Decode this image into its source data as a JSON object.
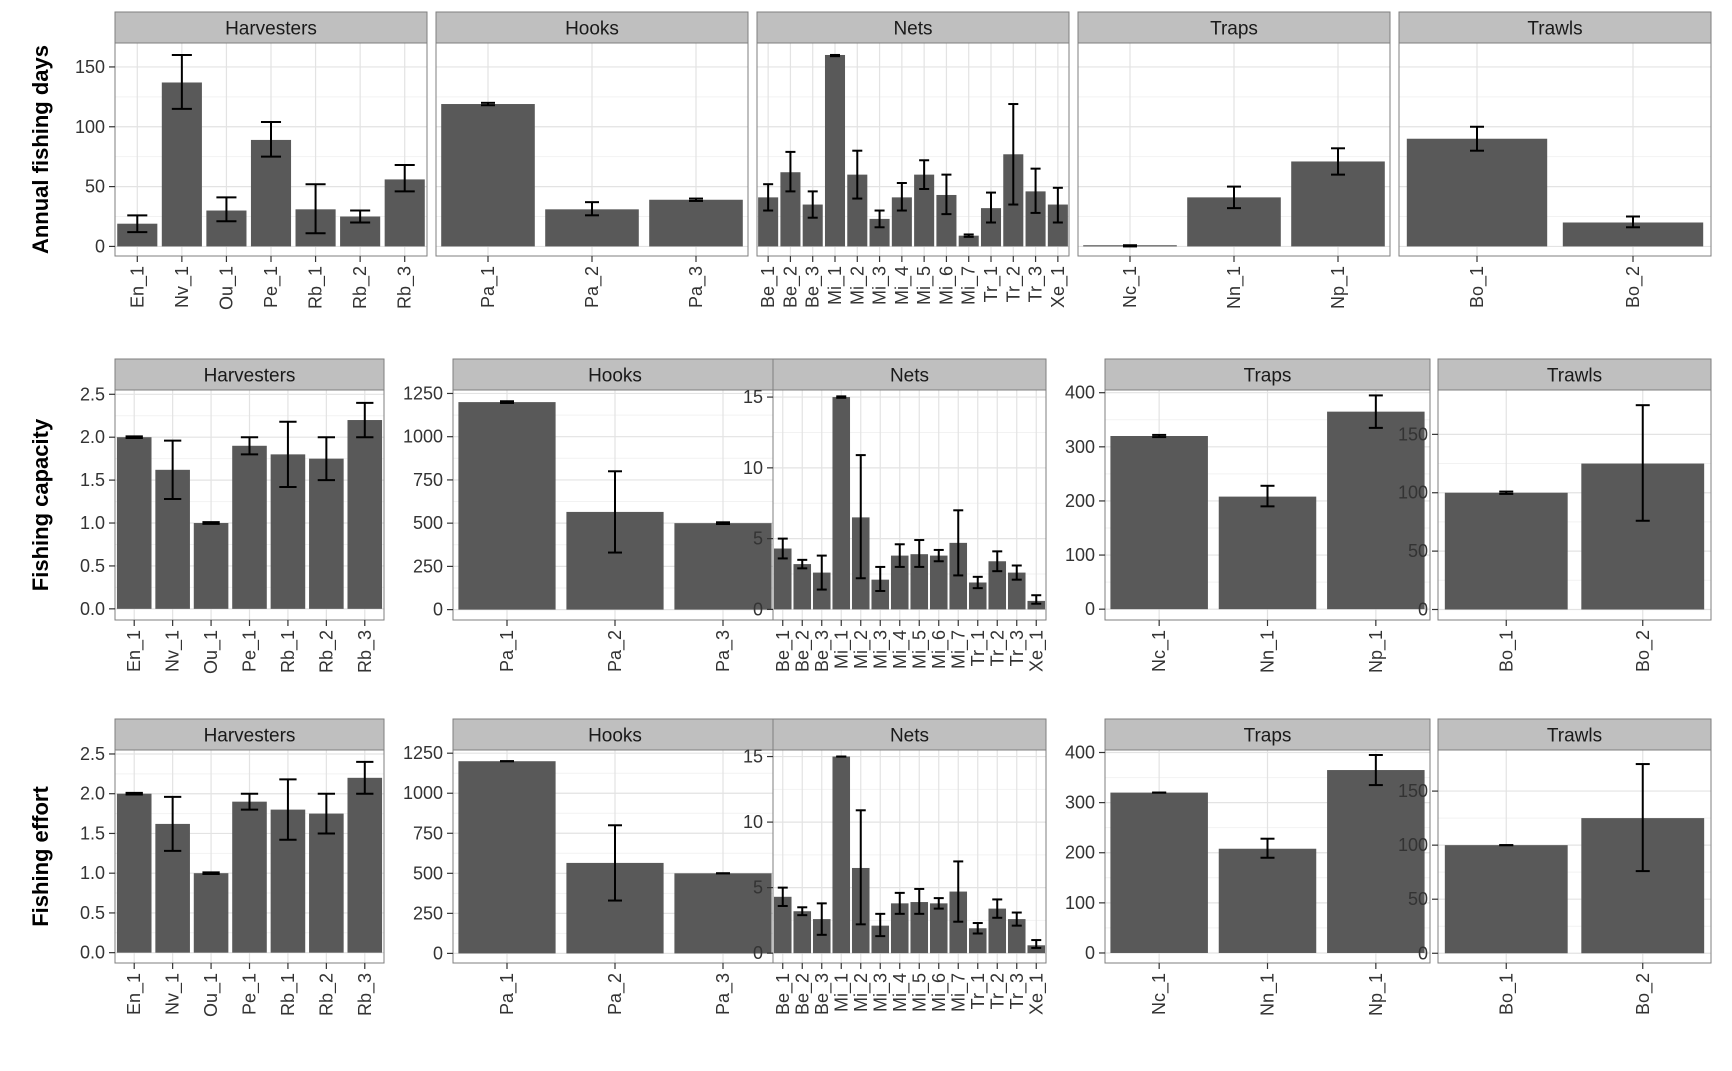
{
  "colors": {
    "bar": "#595959",
    "strip_fill": "#bfbfbf",
    "grid_major": "#e3e3e3",
    "grid_minor": "#f2f2f2",
    "panel_border": "#7f7f7f",
    "error_bar": "#000000"
  },
  "chart_data": [
    {
      "type": "bar",
      "ylabel": "Annual fishing days",
      "grid": true,
      "shared_y_axis": true,
      "ylim": [
        -8,
        170
      ],
      "yticks": [
        0,
        50,
        100,
        150
      ],
      "ytick_labels": [
        "0",
        "50",
        "100",
        "150"
      ],
      "facets": [
        {
          "name": "Harvesters",
          "categories": [
            "En_1",
            "Nv_1",
            "Ou_1",
            "Pe_1",
            "Rb_1",
            "Rb_2",
            "Rb_3"
          ],
          "values": [
            19,
            137,
            30,
            89,
            31,
            25,
            56
          ],
          "error_low": [
            12,
            115,
            21,
            75,
            11,
            20,
            46
          ],
          "error_high": [
            26,
            160,
            41,
            104,
            52,
            30,
            68
          ]
        },
        {
          "name": "Hooks",
          "categories": [
            "Pa_1",
            "Pa_2",
            "Pa_3"
          ],
          "values": [
            119,
            31,
            39
          ],
          "error_low": [
            118,
            26,
            38
          ],
          "error_high": [
            120,
            37,
            40
          ]
        },
        {
          "name": "Nets",
          "categories": [
            "Be_1",
            "Be_2",
            "Be_3",
            "Mi_1",
            "Mi_2",
            "Mi_3",
            "Mi_4",
            "Mi_5",
            "Mi_6",
            "Mi_7",
            "Tr_1",
            "Tr_2",
            "Tr_3",
            "Xe_1"
          ],
          "values": [
            41,
            62,
            35,
            160,
            60,
            23,
            41,
            60,
            43,
            9,
            32,
            77,
            46,
            35
          ],
          "error_low": [
            30,
            46,
            24,
            159,
            40,
            16,
            30,
            48,
            27,
            8,
            20,
            35,
            28,
            20
          ],
          "error_high": [
            52,
            79,
            46,
            160,
            80,
            30,
            53,
            72,
            60,
            10,
            45,
            119,
            65,
            49
          ]
        },
        {
          "name": "Traps",
          "categories": [
            "Nc_1",
            "Nn_1",
            "Np_1"
          ],
          "values": [
            1,
            41,
            71
          ],
          "error_low": [
            0,
            32,
            60
          ],
          "error_high": [
            1,
            50,
            82
          ]
        },
        {
          "name": "Trawls",
          "categories": [
            "Bo_1",
            "Bo_2"
          ],
          "values": [
            90,
            20
          ],
          "error_low": [
            80,
            16
          ],
          "error_high": [
            100,
            25
          ]
        }
      ]
    },
    {
      "type": "bar",
      "ylabel": "Fishing capacity",
      "grid": true,
      "shared_y_axis": false,
      "facets": [
        {
          "name": "Harvesters",
          "ylim": [
            -0.13,
            2.55
          ],
          "yticks": [
            0,
            0.5,
            1,
            1.5,
            2,
            2.5
          ],
          "ytick_labels": [
            "0.0",
            "0.5",
            "1.0",
            "1.5",
            "2.0",
            "2.5"
          ],
          "categories": [
            "En_1",
            "Nv_1",
            "Ou_1",
            "Pe_1",
            "Rb_1",
            "Rb_2",
            "Rb_3"
          ],
          "values": [
            2.0,
            1.62,
            1.0,
            1.9,
            1.8,
            1.75,
            2.2
          ],
          "error_low": [
            1.99,
            1.28,
            0.99,
            1.8,
            1.42,
            1.5,
            2.0
          ],
          "error_high": [
            2.01,
            1.96,
            1.01,
            2.0,
            2.18,
            2.0,
            2.4
          ]
        },
        {
          "name": "Hooks",
          "ylim": [
            -60,
            1270
          ],
          "yticks": [
            0,
            250,
            500,
            750,
            1000,
            1250
          ],
          "ytick_labels": [
            "0",
            "250",
            "500",
            "750",
            "1000",
            "1250"
          ],
          "categories": [
            "Pa_1",
            "Pa_2",
            "Pa_3"
          ],
          "values": [
            1200,
            565,
            500
          ],
          "error_low": [
            1195,
            330,
            495
          ],
          "error_high": [
            1205,
            800,
            505
          ]
        },
        {
          "name": "Nets",
          "ylim": [
            -0.75,
            15.5
          ],
          "yticks": [
            0,
            5,
            10,
            15
          ],
          "ytick_labels": [
            "0",
            "5",
            "10",
            "15"
          ],
          "categories": [
            "Be_1",
            "Be_2",
            "Be_3",
            "Mi_1",
            "Mi_2",
            "Mi_3",
            "Mi_4",
            "Mi_5",
            "Mi_6",
            "Mi_7",
            "Tr_1",
            "Tr_2",
            "Tr_3",
            "Xe_1"
          ],
          "values": [
            4.3,
            3.2,
            2.6,
            15.0,
            6.5,
            2.1,
            3.8,
            3.9,
            3.8,
            4.7,
            1.9,
            3.4,
            2.6,
            0.6
          ],
          "error_low": [
            3.6,
            2.9,
            1.4,
            14.95,
            2.2,
            1.3,
            3.0,
            3.0,
            3.4,
            2.4,
            1.5,
            2.7,
            2.1,
            0.4
          ],
          "error_high": [
            5.0,
            3.5,
            3.8,
            15.05,
            10.9,
            3.0,
            4.6,
            4.9,
            4.2,
            7.0,
            2.3,
            4.1,
            3.1,
            1.0
          ]
        },
        {
          "name": "Traps",
          "ylim": [
            -20,
            405
          ],
          "yticks": [
            0,
            100,
            200,
            300,
            400
          ],
          "ytick_labels": [
            "0",
            "100",
            "200",
            "300",
            "400"
          ],
          "categories": [
            "Nc_1",
            "Nn_1",
            "Np_1"
          ],
          "values": [
            320,
            208,
            365
          ],
          "error_low": [
            318,
            190,
            335
          ],
          "error_high": [
            322,
            228,
            395
          ]
        },
        {
          "name": "Trawls",
          "ylim": [
            -9,
            188
          ],
          "yticks": [
            0,
            50,
            100,
            150
          ],
          "ytick_labels": [
            "0",
            "50",
            "100",
            "150"
          ],
          "categories": [
            "Bo_1",
            "Bo_2"
          ],
          "values": [
            100,
            125
          ],
          "error_low": [
            99,
            76
          ],
          "error_high": [
            101,
            175
          ]
        }
      ]
    },
    {
      "type": "bar",
      "ylabel": "Fishing effort",
      "grid": true,
      "shared_y_axis": false,
      "facets": [
        {
          "name": "Harvesters",
          "ylim": [
            -0.13,
            2.55
          ],
          "yticks": [
            0,
            0.5,
            1,
            1.5,
            2,
            2.5
          ],
          "ytick_labels": [
            "0.0",
            "0.5",
            "1.0",
            "1.5",
            "2.0",
            "2.5"
          ],
          "categories": [
            "En_1",
            "Nv_1",
            "Ou_1",
            "Pe_1",
            "Rb_1",
            "Rb_2",
            "Rb_3"
          ],
          "values": [
            2.0,
            1.62,
            1.0,
            1.9,
            1.8,
            1.75,
            2.2
          ],
          "error_low": [
            1.99,
            1.28,
            0.99,
            1.8,
            1.42,
            1.5,
            2.0
          ],
          "error_high": [
            2.01,
            1.96,
            1.01,
            2.0,
            2.18,
            2.0,
            2.4
          ]
        },
        {
          "name": "Hooks",
          "ylim": [
            -60,
            1270
          ],
          "yticks": [
            0,
            250,
            500,
            750,
            1000,
            1250
          ],
          "ytick_labels": [
            "0",
            "250",
            "500",
            "750",
            "1000",
            "1250"
          ],
          "categories": [
            "Pa_1",
            "Pa_2",
            "Pa_3"
          ],
          "values": [
            1200,
            565,
            500
          ],
          "error_low": [
            1200,
            330,
            500
          ],
          "error_high": [
            1200,
            800,
            500
          ]
        },
        {
          "name": "Nets",
          "ylim": [
            -0.75,
            15.5
          ],
          "yticks": [
            0,
            5,
            10,
            15
          ],
          "ytick_labels": [
            "0",
            "5",
            "10",
            "15"
          ],
          "categories": [
            "Be_1",
            "Be_2",
            "Be_3",
            "Mi_1",
            "Mi_2",
            "Mi_3",
            "Mi_4",
            "Mi_5",
            "Mi_6",
            "Mi_7",
            "Tr_1",
            "Tr_2",
            "Tr_3",
            "Xe_1"
          ],
          "values": [
            4.3,
            3.2,
            2.6,
            15.0,
            6.5,
            2.1,
            3.8,
            3.9,
            3.8,
            4.7,
            1.9,
            3.4,
            2.6,
            0.6
          ],
          "error_low": [
            3.6,
            2.9,
            1.4,
            15.0,
            2.2,
            1.3,
            3.0,
            3.0,
            3.4,
            2.4,
            1.5,
            2.7,
            2.1,
            0.4
          ],
          "error_high": [
            5.0,
            3.5,
            3.8,
            15.0,
            10.9,
            3.0,
            4.6,
            4.9,
            4.2,
            7.0,
            2.3,
            4.1,
            3.1,
            1.0
          ]
        },
        {
          "name": "Traps",
          "ylim": [
            -20,
            405
          ],
          "yticks": [
            0,
            100,
            200,
            300,
            400
          ],
          "ytick_labels": [
            "0",
            "100",
            "200",
            "300",
            "400"
          ],
          "categories": [
            "Nc_1",
            "Nn_1",
            "Np_1"
          ],
          "values": [
            320,
            208,
            365
          ],
          "error_low": [
            320,
            190,
            335
          ],
          "error_high": [
            320,
            228,
            395
          ]
        },
        {
          "name": "Trawls",
          "ylim": [
            -9,
            188
          ],
          "yticks": [
            0,
            50,
            100,
            150
          ],
          "ytick_labels": [
            "0",
            "50",
            "100",
            "150"
          ],
          "categories": [
            "Bo_1",
            "Bo_2"
          ],
          "values": [
            100,
            125
          ],
          "error_low": [
            100,
            76
          ],
          "error_high": [
            100,
            175
          ]
        }
      ]
    }
  ]
}
